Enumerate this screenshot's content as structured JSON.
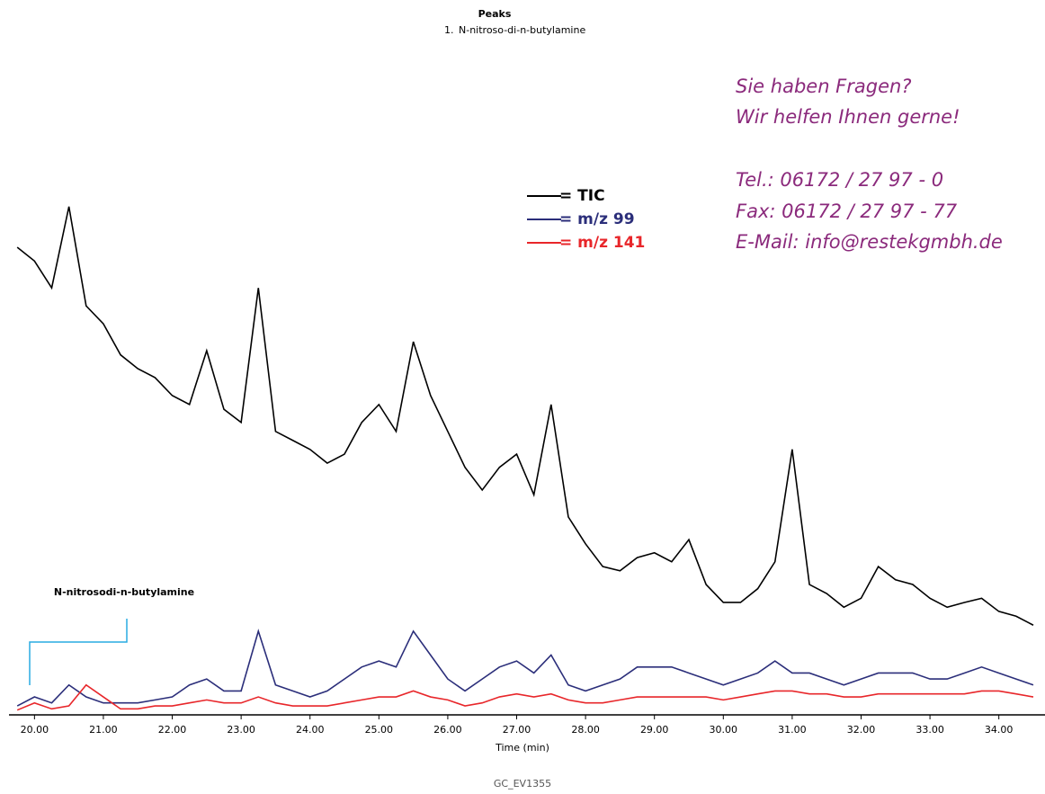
{
  "peaks": {
    "title": "Peaks",
    "number": "1.",
    "name": "N-nitroso-di-n-butylamine"
  },
  "contact": [
    "Sie haben Fragen?",
    "Wir helfen Ihnen gerne!",
    "Tel.: 06172 / 27 97 - 0",
    "Fax: 06172 / 27 97 - 77",
    "E-Mail: info@restekgmbh.de"
  ],
  "footer": "GC_EV1355",
  "chart_data": {
    "type": "line",
    "xlabel": "Time (min)",
    "annotation": "N-nitrosodi-n-butylamine",
    "xlim": [
      19.63,
      34.67
    ],
    "ylim": [
      0,
      100
    ],
    "xticks": [
      {
        "value": 20,
        "label": "20.00"
      },
      {
        "value": 21,
        "label": "21.00"
      },
      {
        "value": 22,
        "label": "22.00"
      },
      {
        "value": 23,
        "label": "23.00"
      },
      {
        "value": 24,
        "label": "24.00"
      },
      {
        "value": 25,
        "label": "25.00"
      },
      {
        "value": 26,
        "label": "26.00"
      },
      {
        "value": 27,
        "label": "27.00"
      },
      {
        "value": 28,
        "label": "28.00"
      },
      {
        "value": 29,
        "label": "29.00"
      },
      {
        "value": 30,
        "label": "30.00"
      },
      {
        "value": 31,
        "label": "31.00"
      },
      {
        "value": 32,
        "label": "32.00"
      },
      {
        "value": 33,
        "label": "33.00"
      },
      {
        "value": 34,
        "label": "34.00"
      }
    ],
    "x": [
      19.75,
      20,
      20.25,
      20.5,
      20.75,
      21,
      21.25,
      21.5,
      21.75,
      22,
      22.25,
      22.5,
      22.75,
      23,
      23.25,
      23.5,
      23.75,
      24,
      24.25,
      24.5,
      24.75,
      25,
      25.25,
      25.5,
      25.75,
      26,
      26.25,
      26.5,
      26.75,
      27,
      27.25,
      27.5,
      27.75,
      28,
      28.25,
      28.5,
      28.75,
      29,
      29.25,
      29.5,
      29.75,
      30,
      30.25,
      30.5,
      30.75,
      31,
      31.25,
      31.5,
      31.75,
      32,
      32.25,
      32.5,
      32.75,
      33,
      33.25,
      33.5,
      33.75,
      34,
      34.25,
      34.5
    ],
    "series": [
      {
        "name": "= TIC",
        "color": "#000000",
        "values": [
          78.2,
          75.9,
          71.4,
          85.0,
          68.4,
          65.4,
          60.2,
          57.9,
          56.4,
          53.4,
          51.9,
          60.9,
          51.1,
          48.9,
          71.4,
          47.4,
          45.9,
          44.4,
          42.1,
          43.6,
          48.9,
          51.9,
          47.4,
          62.4,
          53.4,
          47.4,
          41.4,
          37.6,
          41.4,
          43.6,
          36.8,
          51.9,
          33.1,
          28.6,
          24.8,
          24.1,
          26.3,
          27.1,
          25.6,
          29.3,
          21.8,
          18.8,
          18.8,
          21.1,
          25.6,
          44.4,
          21.8,
          20.3,
          18.0,
          19.5,
          24.8,
          22.6,
          21.8,
          19.5,
          18.0,
          18.8,
          19.5,
          17.3,
          16.5,
          15.0
        ]
      },
      {
        "name": "= m/z 99",
        "color": "#2b2e7a",
        "values": [
          1.5,
          3,
          2,
          5,
          3,
          2,
          2,
          2,
          2.5,
          3,
          5,
          6,
          4,
          4,
          14,
          5,
          4,
          3,
          4,
          6,
          8,
          9,
          8,
          14,
          10,
          6,
          4,
          6,
          8,
          9,
          7,
          10,
          5,
          4,
          5,
          6,
          8,
          8,
          8,
          7,
          6,
          5,
          6,
          7,
          9,
          7,
          7,
          6,
          5,
          6,
          7,
          7,
          7,
          6,
          6,
          7,
          8,
          7,
          6,
          5
        ]
      },
      {
        "name": "= m/z 141",
        "color": "#e8262a",
        "values": [
          0.8,
          2,
          1,
          1.5,
          5,
          3,
          1,
          1,
          1.5,
          1.5,
          2,
          2.5,
          2,
          2,
          3,
          2,
          1.5,
          1.5,
          1.5,
          2,
          2.5,
          3,
          3,
          4,
          3,
          2.5,
          1.5,
          2,
          3,
          3.5,
          3,
          3.5,
          2.5,
          2,
          2,
          2.5,
          3,
          3,
          3,
          3,
          3,
          2.5,
          3,
          3.5,
          4,
          4,
          3.5,
          3.5,
          3,
          3,
          3.5,
          3.5,
          3.5,
          3.5,
          3.5,
          3.5,
          4,
          4,
          3.5,
          3
        ]
      }
    ]
  }
}
